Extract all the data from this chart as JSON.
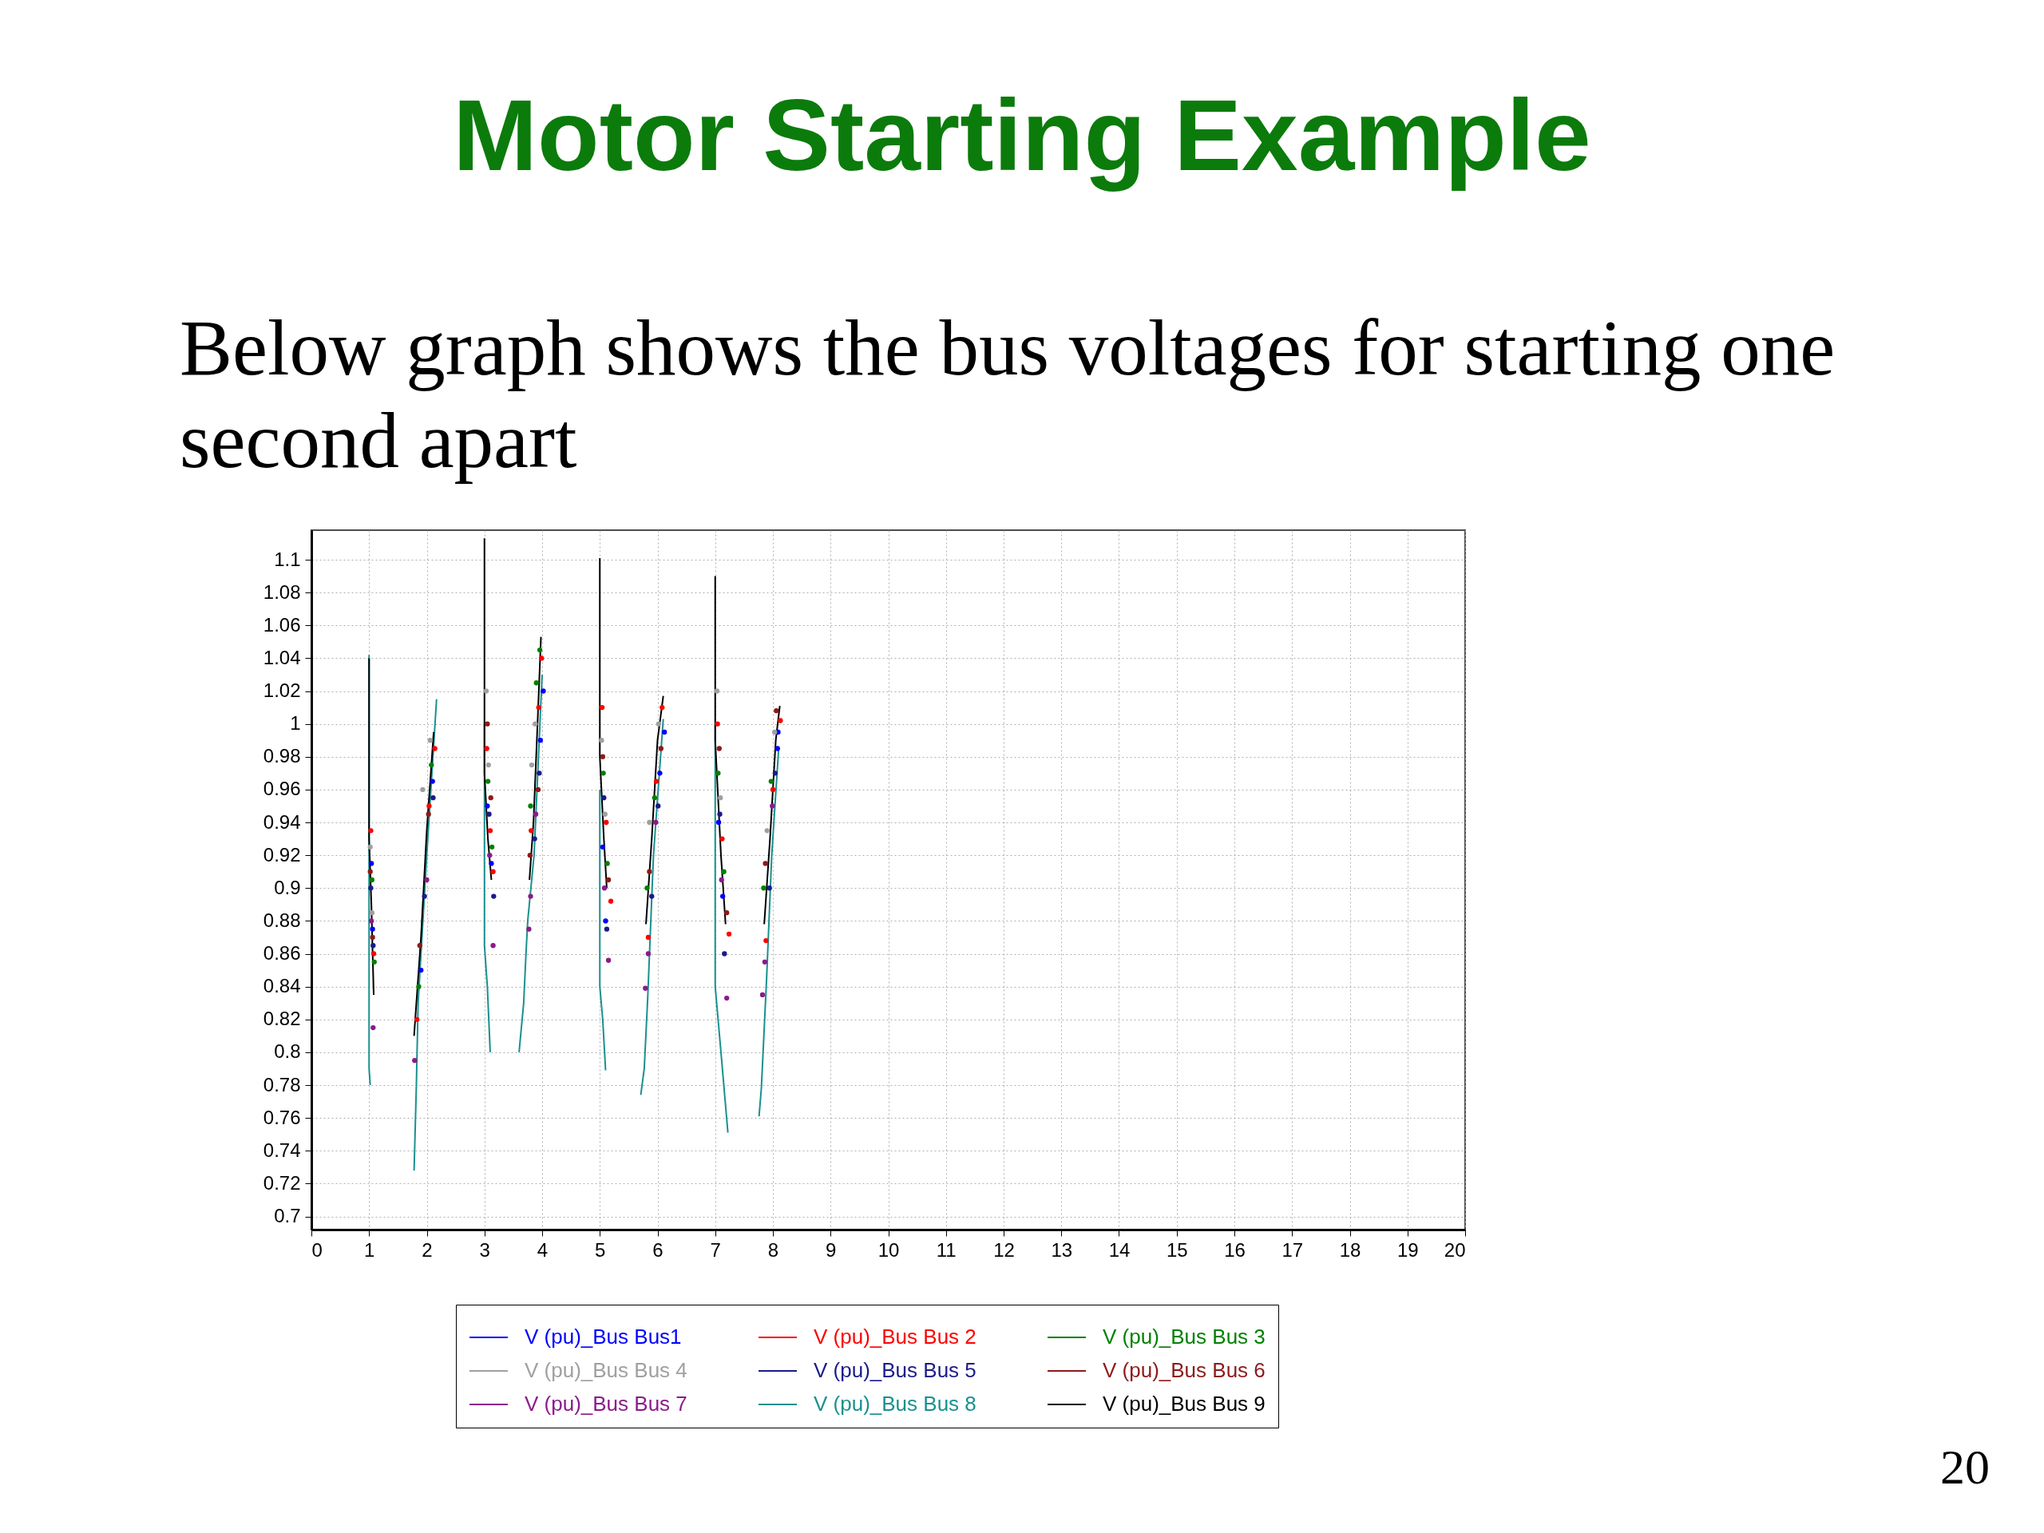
{
  "chart_data": {
    "type": "line",
    "title": "Motor Starting Example",
    "subtitle": "Below graph shows the bus voltages for starting one second apart",
    "annotations": [
      "20"
    ],
    "xlim": [
      0,
      20
    ],
    "xticks": [
      0,
      1,
      2,
      3,
      4,
      5,
      6,
      7,
      8,
      9,
      10,
      11,
      12,
      13,
      14,
      15,
      16,
      17,
      18,
      19,
      20
    ],
    "ylim": [
      0.692,
      1.118
    ],
    "yticks": [
      0.7,
      0.72,
      0.74,
      0.76,
      0.78,
      0.8,
      0.82,
      0.84,
      0.86,
      0.88,
      0.9,
      0.92,
      0.94,
      0.96,
      0.98,
      1,
      1.02,
      1.04,
      1.06,
      1.08,
      1.1
    ],
    "grid": true,
    "legend": "bottom",
    "series": [
      {
        "name": "V (pu)_Bus Bus1",
        "color": "#0000ff",
        "type": "scatter",
        "x": [
          1.04,
          1.06,
          1.9,
          2.1,
          3.05,
          3.12,
          3.97,
          4.02,
          5.05,
          5.1,
          6.04,
          6.12,
          7.06,
          7.13,
          8.08,
          8.09
        ],
        "values": [
          0.915,
          0.875,
          0.85,
          0.965,
          0.95,
          0.915,
          0.99,
          1.02,
          0.925,
          0.88,
          0.97,
          0.995,
          0.94,
          0.895,
          0.985,
          0.995
        ]
      },
      {
        "name": "V (pu)_Bus Bus 2",
        "color": "#ff0000",
        "type": "scatter",
        "x": [
          1.03,
          1.08,
          1.83,
          2.04,
          2.14,
          3.04,
          3.1,
          3.15,
          3.81,
          3.94,
          3.99,
          5.04,
          5.11,
          5.19,
          5.84,
          5.98,
          6.08,
          7.04,
          7.12,
          7.24,
          7.88,
          8.0,
          8.13
        ],
        "values": [
          0.935,
          0.86,
          0.82,
          0.95,
          0.985,
          0.985,
          0.935,
          0.91,
          0.935,
          1.01,
          1.04,
          1.01,
          0.94,
          0.892,
          0.87,
          0.965,
          1.01,
          1.0,
          0.93,
          0.872,
          0.868,
          0.96,
          1.002
        ]
      },
      {
        "name": "V (pu)_Bus Bus 3",
        "color": "#008000",
        "type": "scatter",
        "x": [
          1.05,
          1.09,
          1.86,
          2.08,
          3.06,
          3.13,
          3.8,
          3.9,
          3.96,
          5.06,
          5.13,
          5.82,
          5.95,
          7.05,
          7.15,
          7.84,
          7.97
        ],
        "values": [
          0.905,
          0.855,
          0.84,
          0.975,
          0.965,
          0.925,
          0.95,
          1.025,
          1.045,
          0.97,
          0.915,
          0.9,
          0.955,
          0.97,
          0.91,
          0.9,
          0.965
        ]
      },
      {
        "name": "V (pu)_Bus Bus 4",
        "color": "#a0a0a0",
        "type": "scatter",
        "x": [
          1.02,
          1.05,
          1.93,
          2.06,
          3.03,
          3.07,
          3.82,
          3.88,
          5.03,
          5.09,
          5.86,
          6.02,
          7.03,
          7.09,
          7.9,
          8.03
        ],
        "values": [
          0.925,
          0.885,
          0.96,
          0.99,
          1.02,
          0.975,
          0.975,
          1.0,
          0.99,
          0.945,
          0.94,
          1.0,
          1.02,
          0.955,
          0.935,
          0.995
        ]
      },
      {
        "name": "V (pu)_Bus Bus 5",
        "color": "#1a1a8c",
        "type": "scatter",
        "x": [
          1.03,
          1.07,
          1.96,
          2.11,
          3.08,
          3.16,
          3.87,
          3.95,
          5.07,
          5.12,
          5.9,
          6.01,
          7.08,
          7.16,
          7.94,
          8.04
        ],
        "values": [
          0.9,
          0.865,
          0.895,
          0.955,
          0.945,
          0.895,
          0.93,
          0.97,
          0.955,
          0.875,
          0.895,
          0.95,
          0.945,
          0.86,
          0.9,
          0.97
        ]
      },
      {
        "name": "V (pu)_Bus Bus 6",
        "color": "#8c1a1a",
        "type": "scatter",
        "x": [
          1.02,
          1.06,
          1.88,
          2.03,
          3.05,
          3.11,
          3.79,
          3.93,
          5.05,
          5.15,
          5.86,
          6.06,
          7.07,
          7.2,
          7.87,
          8.06
        ],
        "values": [
          0.91,
          0.87,
          0.865,
          0.945,
          1.0,
          0.955,
          0.92,
          0.96,
          0.98,
          0.905,
          0.91,
          0.985,
          0.985,
          0.885,
          0.915,
          1.008
        ]
      },
      {
        "name": "V (pu)_Bus Bus 7",
        "color": "#8c1a8c",
        "type": "scatter",
        "x": [
          1.04,
          1.07,
          1.79,
          2.0,
          3.09,
          3.15,
          3.77,
          3.8,
          3.89,
          5.08,
          5.15,
          5.79,
          5.84,
          5.97,
          7.11,
          7.2,
          7.82,
          7.86,
          7.99
        ],
        "values": [
          0.88,
          0.815,
          0.795,
          0.905,
          0.92,
          0.865,
          0.875,
          0.895,
          0.945,
          0.9,
          0.856,
          0.839,
          0.86,
          0.94,
          0.905,
          0.833,
          0.835,
          0.855,
          0.95
        ]
      },
      {
        "name": "V (pu)_Bus Bus 8",
        "color": "#1a9090",
        "x": [
          1,
          1,
          1.02,
          1.5,
          1.78,
          1.82,
          1.85,
          2,
          2.17,
          2.5,
          3,
          3,
          3.05,
          3.1,
          3.4,
          3.6,
          3.68,
          3.72,
          3.75,
          3.86,
          4,
          4.5,
          5,
          5,
          5.05,
          5.1,
          5.5,
          5.71,
          5.77,
          5.83,
          5.93,
          6.1,
          6.5,
          7,
          7,
          7.1,
          7.22,
          7.5,
          7.76,
          7.8,
          7.89,
          7.98,
          8.1
        ],
        "values": [
          1.042,
          0.79,
          0.78,
          null,
          0.728,
          0.78,
          0.83,
          0.92,
          1.015,
          null,
          1.0,
          0.865,
          0.84,
          0.8,
          null,
          0.8,
          0.83,
          0.86,
          0.88,
          0.92,
          1.03,
          null,
          0.96,
          0.84,
          0.82,
          0.789,
          null,
          0.774,
          0.79,
          0.833,
          0.92,
          1.003,
          null,
          1.0,
          0.84,
          0.8,
          0.751,
          null,
          0.761,
          0.778,
          0.844,
          0.92,
          0.985
        ]
      },
      {
        "name": "V (pu)_Bus Bus 9",
        "color": "#000000",
        "x": [
          1,
          1,
          1.04,
          1.08,
          1.5,
          1.78,
          1.9,
          2,
          2.12,
          2.5,
          3,
          3,
          3.06,
          3.12,
          3.4,
          3.78,
          3.85,
          3.92,
          3.98,
          4.5,
          5,
          5,
          5.07,
          5.12,
          5.5,
          5.8,
          5.9,
          6,
          6.1,
          6.5,
          7,
          7,
          7.1,
          7.18,
          7.5,
          7.85,
          7.95,
          8.05,
          8.12
        ],
        "values": [
          1.04,
          0.93,
          0.89,
          0.835,
          null,
          0.81,
          0.87,
          0.935,
          0.995,
          null,
          1.113,
          0.97,
          0.93,
          0.905,
          null,
          0.905,
          0.94,
          1.0,
          1.053,
          null,
          1.101,
          0.98,
          0.93,
          0.9,
          null,
          0.878,
          0.93,
          0.99,
          1.017,
          null,
          1.09,
          0.99,
          0.92,
          0.878,
          null,
          0.878,
          0.93,
          0.99,
          1.011
        ]
      }
    ]
  }
}
